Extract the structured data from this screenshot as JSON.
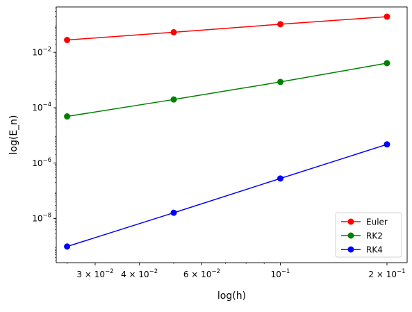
{
  "chart_data": {
    "type": "line",
    "xlabel": "log(h)",
    "ylabel": "log(E_n)",
    "xscale": "log",
    "yscale": "log",
    "xlim": [
      0.0233,
      0.228
    ],
    "ylim": [
      2.56e-10,
      0.433
    ],
    "x": [
      0.025,
      0.05,
      0.1,
      0.2
    ],
    "series": [
      {
        "name": "Euler",
        "color": "#ff0000",
        "marker": "circle",
        "values": [
          0.0278,
          0.0529,
          0.1032,
          0.1933
        ]
      },
      {
        "name": "RK2",
        "color": "#008000",
        "marker": "circle",
        "values": [
          4.85e-05,
          0.000198,
          0.000852,
          0.00405
        ]
      },
      {
        "name": "RK4",
        "color": "#0000ff",
        "marker": "circle",
        "values": [
          9.8e-10,
          1.62e-08,
          2.8e-07,
          4.75e-06
        ]
      }
    ],
    "x_ticks": [
      {
        "value": 0.03,
        "mantissa": "3",
        "exponent": "−2"
      },
      {
        "value": 0.04,
        "mantissa": "4",
        "exponent": "−2"
      },
      {
        "value": 0.06,
        "mantissa": "6",
        "exponent": "−2"
      },
      {
        "value": 0.1,
        "mantissa": "",
        "exponent": "−1"
      },
      {
        "value": 0.2,
        "mantissa": "2",
        "exponent": "−1"
      }
    ],
    "x_minor_ticks": [
      0.025,
      0.05,
      0.07,
      0.08,
      0.09
    ],
    "y_ticks": [
      {
        "value": 1e-08,
        "exponent": "−8"
      },
      {
        "value": 1e-06,
        "exponent": "−6"
      },
      {
        "value": 0.0001,
        "exponent": "−4"
      },
      {
        "value": 0.01,
        "exponent": "−2"
      }
    ],
    "grid": false,
    "legend_position": "lower-right"
  }
}
